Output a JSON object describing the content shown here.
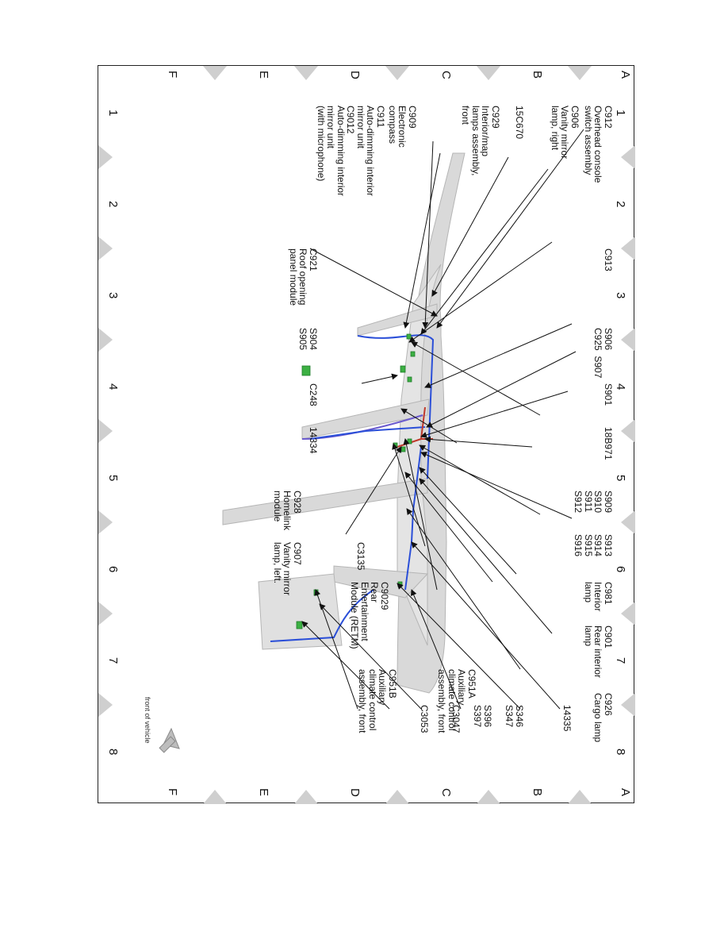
{
  "grid": {
    "columns": [
      "1",
      "2",
      "3",
      "4",
      "5",
      "6",
      "7",
      "8"
    ],
    "rows": [
      "A",
      "B",
      "C",
      "D",
      "E",
      "F"
    ]
  },
  "orientation_note": "front of vehicle",
  "callouts": {
    "c912": "C912\nOverhead console\nswitch assembly",
    "c906": "C906\nVanity mirror\nlamp, right",
    "c15c670": "15C670",
    "c929": "C929\nInterior/map\nlamps assembly,\nfront",
    "c909": "C909\nElectronic\ncompass",
    "c911": "C911\nAuto-dimming interior\nmirror unit\nC9012\nAuto-dimming interior\nmirror unit\n(with microphone)",
    "c913": "C913",
    "c921": "C921\nRoof opening\npanel module",
    "s906": "S906\nC925  S907",
    "s904": "S904\nS905",
    "s901": "S901",
    "c248": "C248",
    "c18b971": "18B971",
    "c14334": "14334",
    "s909": "S909\nS910\nS911\nS912",
    "c928": "C928\nHomelink\nmodule",
    "s913": "S913\nS914\nS915\nS916",
    "c907": "C907\nVanity mirror\nlamp, left.",
    "c3135": "C3135",
    "c981": "C981\nInterior\nlamp",
    "c9029": "C9029\nRear\nEntertainment\nModule (RETM)",
    "c901": "C901\nRear interior\nlamp",
    "c951a": "C951A\nAuxiliary\nclimate control\nassembly, front",
    "c951b": "C951B\nAuxiliary\nclimate control\nassembly, front",
    "c926": "C926\nCargo lamp",
    "c14335": "14335",
    "s346": "S346\nS347",
    "s396": "S396\nS397",
    "c3047": "C3047",
    "c3053": "C3053"
  },
  "colors": {
    "harness_blue": "#2b4fd8",
    "harness_purple": "#6a5acd",
    "harness_red": "#c0392b",
    "connector_green": "#3cb043",
    "body_gray": "#d9d9d9",
    "marker_gray": "#cfcfcf"
  }
}
